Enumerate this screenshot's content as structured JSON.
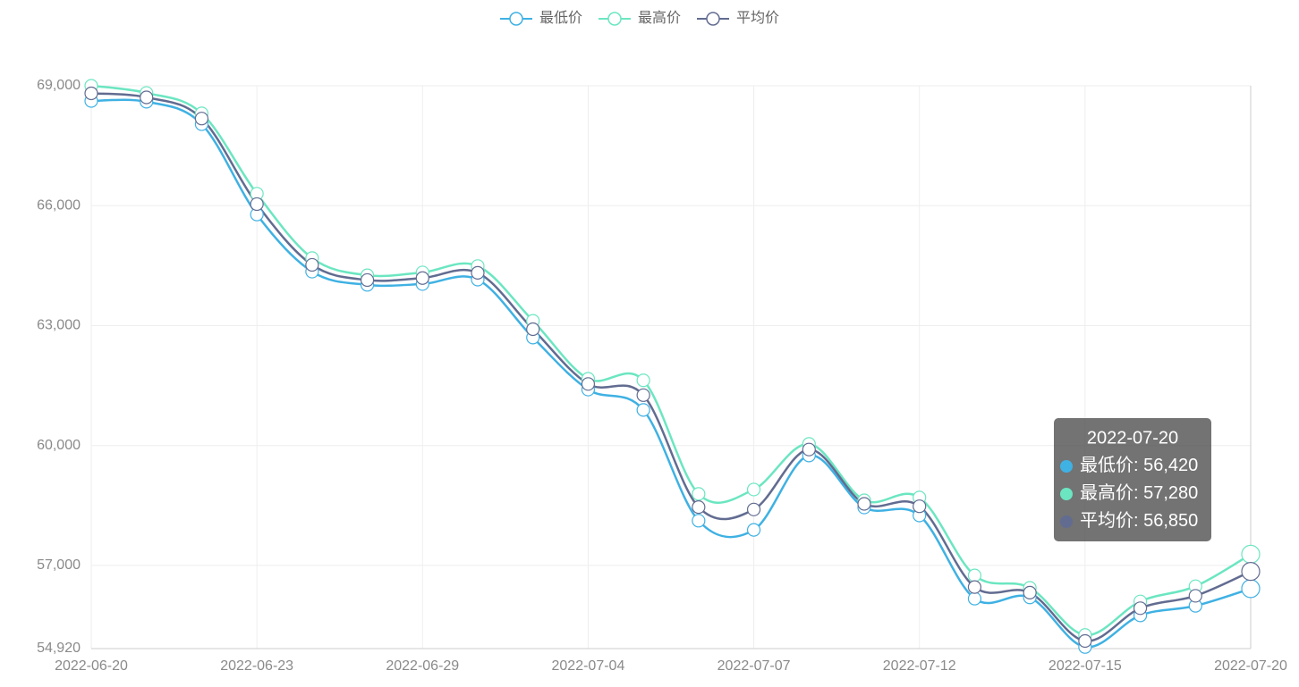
{
  "chart_data": {
    "type": "line",
    "categories": [
      "2022-06-20",
      null,
      null,
      "2022-06-23",
      null,
      null,
      "2022-06-29",
      null,
      null,
      "2022-07-04",
      null,
      null,
      "2022-07-07",
      null,
      null,
      "2022-07-12",
      null,
      null,
      "2022-07-15",
      null,
      null,
      "2022-07-20"
    ],
    "series": [
      {
        "name": "最低价",
        "color": "#3fb1e3",
        "values": [
          68620,
          68600,
          68040,
          65780,
          64350,
          64020,
          64040,
          64150,
          62700,
          61400,
          60890,
          58120,
          57890,
          59750,
          58450,
          58250,
          56170,
          56200,
          54960,
          55750,
          55990,
          56420
        ]
      },
      {
        "name": "最高价",
        "color": "#6be6c1",
        "values": [
          69000,
          68820,
          68310,
          66300,
          64690,
          64260,
          64330,
          64490,
          63120,
          61670,
          61630,
          58790,
          58900,
          60040,
          58630,
          58700,
          56750,
          56440,
          55260,
          56100,
          56480,
          57280
        ]
      },
      {
        "name": "平均价",
        "color": "#626c91",
        "values": [
          68810,
          68710,
          68180,
          66040,
          64520,
          64140,
          64190,
          64320,
          62910,
          61540,
          61260,
          58460,
          58400,
          59900,
          58540,
          58480,
          56460,
          56320,
          55110,
          55930,
          56240,
          56850
        ]
      }
    ],
    "ylim": [
      54920,
      69000
    ],
    "yticks": [
      {
        "value": 54920,
        "label": "54,920"
      },
      {
        "value": 57000,
        "label": "57,000"
      },
      {
        "value": 60000,
        "label": "60,000"
      },
      {
        "value": 63000,
        "label": "63,000"
      },
      {
        "value": 66000,
        "label": "66,000"
      },
      {
        "value": 69000,
        "label": "69,000"
      }
    ],
    "grid": true,
    "smooth": true,
    "legend": "top",
    "tooltip": {
      "index": 21,
      "labels": [
        "56,420",
        "57,280",
        "56,850"
      ]
    }
  }
}
